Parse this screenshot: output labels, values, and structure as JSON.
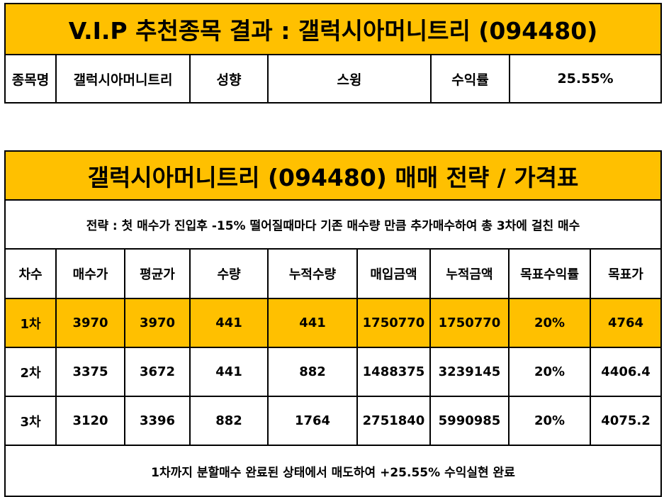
{
  "result": {
    "title": "V.I.P 추천종목 결과 : 갤럭시아머니트리 (094480)",
    "stock_label": "종목명",
    "stock_value": "갤럭시아머니트리",
    "style_label": "성향",
    "style_value": "스윙",
    "return_label": "수익률",
    "return_value": "25.55%"
  },
  "strategy": {
    "title": "갤럭시아머니트리 (094480) 매매 전략 / 가격표",
    "description": "전략 : 첫 매수가 진입후 -15% 떨어질때마다 기존 매수량 만큼 추가매수하여 총 3차에 걸친 매수",
    "headers": [
      "차수",
      "매수가",
      "평균가",
      "수량",
      "누적수량",
      "매입금액",
      "누적금액",
      "목표수익률",
      "목표가"
    ],
    "rows": [
      [
        "1차",
        "3970",
        "3970",
        "441",
        "441",
        "1750770",
        "1750770",
        "20%",
        "4764"
      ],
      [
        "2차",
        "3375",
        "3672",
        "441",
        "882",
        "1488375",
        "3239145",
        "20%",
        "4406.4"
      ],
      [
        "3차",
        "3120",
        "3396",
        "882",
        "1764",
        "2751840",
        "5990985",
        "20%",
        "4075.2"
      ]
    ],
    "footer": "1차까지 분할매수 완료된 상태에서 매도하여 +25.55% 수익실현 완료"
  },
  "colors": {
    "highlight": "#ffc000",
    "border": "#000000"
  }
}
